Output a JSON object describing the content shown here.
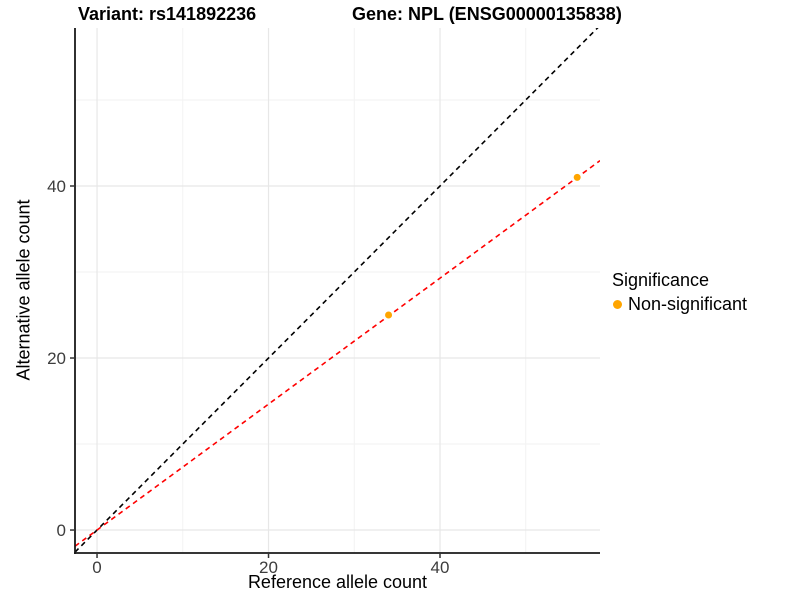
{
  "figure": {
    "title_variant": "Variant: rs141892236",
    "title_gene": "Gene: NPL (ENSG00000135838)"
  },
  "chart_data": {
    "type": "scatter",
    "title": "Variant: rs141892236 — Gene: NPL (ENSG00000135838)",
    "xlabel": "Reference allele count",
    "ylabel": "Alternative allele count",
    "xlim": [
      -2.57,
      58.66
    ],
    "ylim": [
      -2.67,
      58.37
    ],
    "x_ticks": [
      0,
      20,
      40
    ],
    "y_ticks": [
      0,
      20,
      40
    ],
    "x_minor_ticks": [
      10,
      30,
      50
    ],
    "y_minor_ticks": [
      10,
      30,
      50
    ],
    "grid": true,
    "legend_position": "right",
    "points": [
      {
        "x": 34,
        "y": 25
      },
      {
        "x": 56,
        "y": 41
      }
    ],
    "point_color": "#FFA500",
    "lines": [
      {
        "name": "identity-line",
        "slope": 1.0,
        "intercept": 0,
        "color": "#000000",
        "style": "dashed"
      },
      {
        "name": "fit-line",
        "slope": 0.7321,
        "intercept": 0,
        "color": "#FF0000",
        "style": "dashed"
      }
    ],
    "legend": {
      "title": "Significance",
      "items": [
        {
          "label": "Non-significant",
          "color": "#FFA500"
        }
      ]
    },
    "colors": {
      "axis_line": "#1a1a1a",
      "tick_mark": "#333333",
      "tick_label": "#3d3d3d",
      "grid_major": "#e7e7e7",
      "grid_minor": "#f2f2f2"
    }
  }
}
